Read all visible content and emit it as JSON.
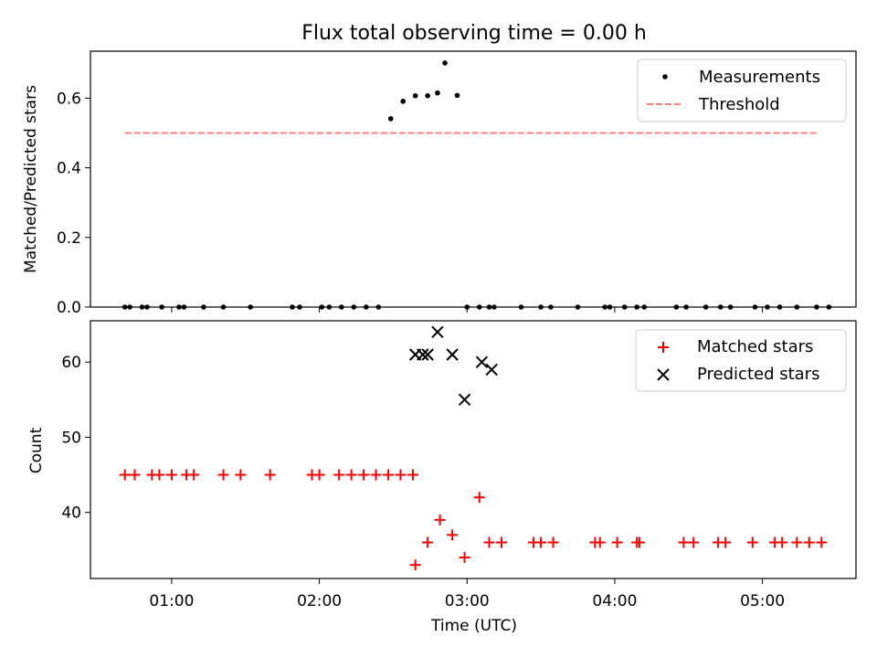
{
  "chart_data": [
    {
      "type": "scatter",
      "title": "Flux total observing time = 0.00 h",
      "xlabel": "",
      "ylabel": "Matched/Predicted stars",
      "ylim": [
        0,
        0.735
      ],
      "yticks": [
        "0.0",
        "0.2",
        "0.4",
        "0.6"
      ],
      "legend_position": "top-right",
      "series": [
        {
          "name": "Measurements",
          "marker": "dot",
          "color": "#000000",
          "x": [
            "00:41",
            "00:43",
            "00:48",
            "00:50",
            "00:56",
            "01:03",
            "01:05",
            "01:13",
            "01:21",
            "01:32",
            "01:49",
            "01:52",
            "02:01",
            "02:04",
            "02:09",
            "02:14",
            "02:19",
            "02:24",
            "02:29",
            "02:34",
            "02:39",
            "02:44",
            "02:48",
            "02:51",
            "02:56",
            "03:00",
            "03:05",
            "03:09",
            "03:11",
            "03:22",
            "03:30",
            "03:34",
            "03:45",
            "03:56",
            "03:58",
            "04:04",
            "04:09",
            "04:12",
            "04:25",
            "04:29",
            "04:37",
            "04:43",
            "04:47",
            "04:57",
            "05:02",
            "05:07",
            "05:14",
            "05:22",
            "05:27"
          ],
          "y": [
            0,
            0,
            0,
            0,
            0,
            0,
            0,
            0,
            0,
            0,
            0,
            0,
            0,
            0,
            0,
            0,
            0,
            0,
            0.541,
            0.591,
            0.607,
            0.607,
            0.615,
            0.701,
            0.608,
            0,
            0,
            0,
            0,
            0,
            0,
            0,
            0,
            0,
            0,
            0,
            0,
            0,
            0,
            0,
            0,
            0,
            0,
            0,
            0,
            0,
            0,
            0,
            0
          ]
        },
        {
          "name": "Threshold",
          "line_style": "dashed",
          "color": "#ff7f7f",
          "x": [
            "00:41",
            "05:22"
          ],
          "y": [
            0.5,
            0.5
          ]
        }
      ]
    },
    {
      "type": "scatter",
      "title": "",
      "xlabel": "Time (UTC)",
      "ylabel": "Count",
      "ylim": [
        31.2,
        65.5
      ],
      "yticks": [
        "40",
        "50",
        "60"
      ],
      "xlim": [
        "00:27",
        "05:38"
      ],
      "xticks": [
        "01:00",
        "02:00",
        "03:00",
        "04:00",
        "05:00"
      ],
      "legend_position": "top-right",
      "series": [
        {
          "name": "Matched stars",
          "marker": "plus",
          "color": "#ff0000",
          "x": [
            "00:41",
            "00:45",
            "00:52",
            "00:55",
            "01:00",
            "01:06",
            "01:09",
            "01:21",
            "01:28",
            "01:40",
            "01:57",
            "02:00",
            "02:08",
            "02:13",
            "02:18",
            "02:23",
            "02:28",
            "02:33",
            "02:38",
            "02:39",
            "02:44",
            "02:49",
            "02:54",
            "02:59",
            "03:05",
            "03:09",
            "03:14",
            "03:27",
            "03:30",
            "03:35",
            "03:52",
            "03:54",
            "04:01",
            "04:09",
            "04:10",
            "04:28",
            "04:32",
            "04:42",
            "04:45",
            "04:56",
            "05:05",
            "05:08",
            "05:14",
            "05:19",
            "05:24"
          ],
          "y": [
            45,
            45,
            45,
            45,
            45,
            45,
            45,
            45,
            45,
            45,
            45,
            45,
            45,
            45,
            45,
            45,
            45,
            45,
            45,
            33,
            36,
            39,
            37,
            34,
            42,
            36,
            36,
            36,
            36,
            36,
            36,
            36,
            36,
            36,
            36,
            36,
            36,
            36,
            36,
            36,
            36,
            36,
            36,
            36,
            36
          ]
        },
        {
          "name": "Predicted stars",
          "marker": "x",
          "color": "#000000",
          "x": [
            "02:39",
            "02:42",
            "02:44",
            "02:48",
            "02:54",
            "02:59",
            "03:06",
            "03:10"
          ],
          "y": [
            61,
            61,
            61,
            64,
            61,
            55,
            60,
            59
          ]
        }
      ]
    }
  ]
}
